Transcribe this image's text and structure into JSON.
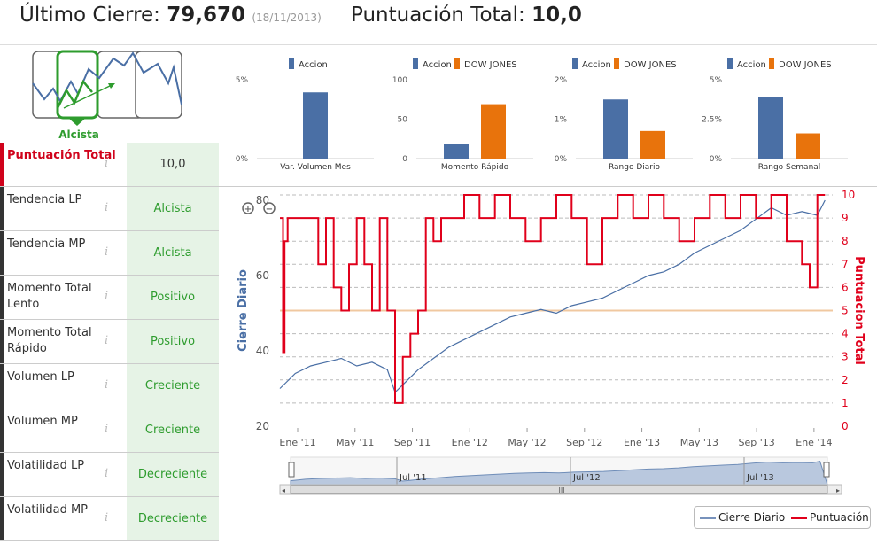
{
  "header": {
    "last_close_label": "Último Cierre:",
    "last_close_value": "79,670",
    "last_close_date": "(18/11/2013)",
    "score_label": "Puntuación Total:",
    "score_value": "10,0"
  },
  "trend_badge": "Alcista",
  "rows": [
    {
      "label": "Puntuación Total",
      "value": "10,0"
    },
    {
      "label": "Tendencia LP",
      "value": "Alcista"
    },
    {
      "label": "Tendencia MP",
      "value": "Alcista"
    },
    {
      "label": "Momento Total Lento",
      "value": "Positivo"
    },
    {
      "label": "Momento Total Rápido",
      "value": "Positivo"
    },
    {
      "label": "Volumen LP",
      "value": "Creciente"
    },
    {
      "label": "Volumen MP",
      "value": "Creciente"
    },
    {
      "label": "Volatilidad LP",
      "value": "Decreciente"
    },
    {
      "label": "Volatilidad MP",
      "value": "Decreciente"
    }
  ],
  "colors": {
    "accion": "#4a6fa5",
    "dow": "#e8730c",
    "score": "#e0001b",
    "green": "#2e9c2e"
  },
  "chart_data": [
    {
      "type": "bar",
      "title": "",
      "legend": [
        "Accion"
      ],
      "categories": [
        "Var. Volumen Mes"
      ],
      "series": [
        {
          "name": "Accion",
          "values": [
            4.2
          ]
        }
      ],
      "yticks": [
        "0%",
        "5%"
      ],
      "ylim": [
        0,
        5
      ]
    },
    {
      "type": "bar",
      "legend": [
        "Accion",
        "DOW JONES"
      ],
      "categories": [
        "Momento Rápido"
      ],
      "series": [
        {
          "name": "Accion",
          "values": [
            18
          ]
        },
        {
          "name": "DOW JONES",
          "values": [
            69
          ]
        }
      ],
      "yticks": [
        "0",
        "50",
        "100"
      ],
      "ylim": [
        0,
        100
      ]
    },
    {
      "type": "bar",
      "legend": [
        "Accion",
        "DOW JONES"
      ],
      "categories": [
        "Rango Diario"
      ],
      "series": [
        {
          "name": "Accion",
          "values": [
            1.5
          ]
        },
        {
          "name": "DOW JONES",
          "values": [
            0.7
          ]
        }
      ],
      "yticks": [
        "0%",
        "1%",
        "2%"
      ],
      "ylim": [
        0,
        2
      ]
    },
    {
      "type": "bar",
      "legend": [
        "Accion",
        "DOW JONES"
      ],
      "categories": [
        "Rango Semanal"
      ],
      "series": [
        {
          "name": "Accion",
          "values": [
            3.9
          ]
        },
        {
          "name": "DOW JONES",
          "values": [
            1.6
          ]
        }
      ],
      "yticks": [
        "0%",
        "2.5%",
        "5%"
      ],
      "ylim": [
        0,
        5
      ]
    },
    {
      "type": "line",
      "xlabel": "",
      "ylabel": "Cierre Diario",
      "y2label": "Puntuacion Total",
      "x_ticks": [
        "Ene '11",
        "May '11",
        "Sep '11",
        "Ene '12",
        "May '12",
        "Sep '12",
        "Ene '13",
        "May '13",
        "Sep '13",
        "Ene '14"
      ],
      "y_ticks": [
        "20",
        "40",
        "60",
        "80"
      ],
      "y2_ticks": [
        "0",
        "1",
        "2",
        "3",
        "4",
        "5",
        "6",
        "7",
        "8",
        "9",
        "10"
      ],
      "ylim": [
        20,
        80
      ],
      "y2lim": [
        0,
        10
      ],
      "threshold": 5,
      "navigator_labels": [
        "Jul '11",
        "Jul '12",
        "Jul '13"
      ],
      "navigator_grip": "III",
      "legend": [
        "Cierre Diario",
        "Puntuación"
      ],
      "series": [
        {
          "name": "Cierre Diario",
          "t": [
            0,
            0.5,
            1,
            2,
            3,
            4,
            5,
            6,
            7,
            7.5,
            8,
            8.5,
            9,
            10,
            11,
            12,
            13,
            14,
            15,
            16,
            17,
            18,
            19,
            20,
            21,
            22,
            23,
            24,
            25,
            26,
            27,
            28,
            29,
            30,
            31,
            32,
            33,
            34,
            35,
            35.5
          ],
          "values": [
            30,
            32,
            34,
            36,
            37,
            38,
            36,
            37,
            35,
            29,
            31,
            33,
            35,
            38,
            41,
            43,
            45,
            47,
            49,
            50,
            51,
            50,
            52,
            53,
            54,
            56,
            58,
            60,
            61,
            63,
            66,
            68,
            70,
            72,
            75,
            78,
            76,
            77,
            76,
            80
          ]
        },
        {
          "name": "Puntuación",
          "t": [
            0,
            0.2,
            0.3,
            0.5,
            2.5,
            3,
            3.5,
            4,
            4.5,
            5,
            5.5,
            6,
            6.5,
            7,
            7.5,
            8,
            8.5,
            9,
            9.5,
            10,
            10.5,
            11,
            12,
            13,
            14,
            15,
            16,
            17,
            18,
            19,
            20,
            21,
            22,
            23,
            24,
            25,
            26,
            27,
            28,
            29,
            30,
            31,
            32,
            33,
            34,
            34.5,
            35,
            35.5
          ],
          "values": [
            9,
            3.2,
            8,
            9,
            7,
            9,
            6,
            5,
            7,
            9,
            7,
            5,
            9,
            5,
            1,
            3,
            4,
            5,
            9,
            8,
            9,
            9,
            10,
            9,
            10,
            9,
            8,
            9,
            10,
            9,
            7,
            9,
            10,
            9,
            10,
            9,
            8,
            9,
            10,
            9,
            10,
            9,
            10,
            8,
            7,
            6,
            10,
            10
          ]
        }
      ]
    }
  ]
}
